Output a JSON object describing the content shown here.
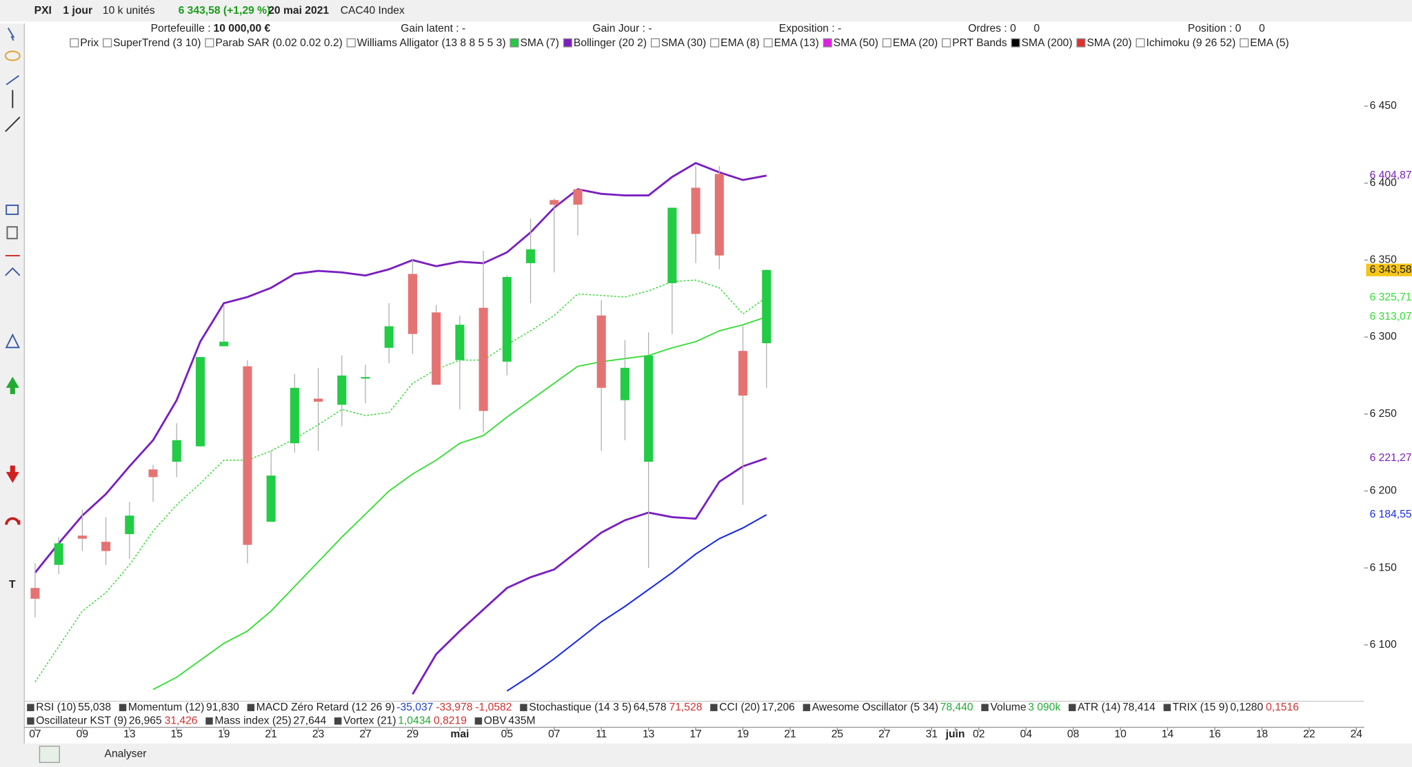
{
  "toolbar": {
    "symbol": "PXI",
    "period": "1 jour",
    "units": "10 k unités",
    "quote": "6 343,58 (+1,29 %)",
    "date": "20 mai 2021",
    "name": "CAC40 Index",
    "analyse": "Analyser"
  },
  "account": {
    "portfolio_label": "Portefeuille :",
    "portfolio_value": "10 000,00 €",
    "gain_latent": "Gain latent : -",
    "gain_jour": "Gain Jour : -",
    "exposition": "Exposition : -",
    "ordres": "Ordres : 0",
    "ordres_2": "0",
    "position": "Position : 0",
    "position_2": "0"
  },
  "indicators": [
    {
      "name": "Prix",
      "color": "#ffffff"
    },
    {
      "name": "SuperTrend (3 10)",
      "color": "#ffffff"
    },
    {
      "name": "Parab SAR (0.02 0.02 0.2)",
      "color": "#ffffff"
    },
    {
      "name": "Williams Alligator (13 8 8 5 5 3)",
      "color": "#ffffff"
    },
    {
      "name": "SMA (7)",
      "color": "#22cc44"
    },
    {
      "name": "Bollinger (20 2)",
      "color": "#7a1fbf"
    },
    {
      "name": "SMA (30)",
      "color": "#ffffff"
    },
    {
      "name": "EMA (8)",
      "color": "#ffffff"
    },
    {
      "name": "EMA (13)",
      "color": "#ffffff"
    },
    {
      "name": "SMA (50)",
      "color": "#e020e0"
    },
    {
      "name": "EMA (20)",
      "color": "#ffffff"
    },
    {
      "name": "PRT Bands",
      "color": "#ffffff"
    },
    {
      "name": "SMA (200)",
      "color": "#000000"
    },
    {
      "name": "SMA (20)",
      "color": "#e03030"
    },
    {
      "name": "Ichimoku (9 26 52)",
      "color": "#ffffff"
    },
    {
      "name": "EMA (5)",
      "color": "#ffffff"
    }
  ],
  "panels": [
    [
      {
        "name": "RSI (10)",
        "values": [
          {
            "text": "55,038",
            "color": "#222222"
          }
        ]
      },
      {
        "name": "Momentum (12)",
        "values": [
          {
            "text": "91,830",
            "color": "#222222"
          }
        ]
      },
      {
        "name": "MACD Zéro Retard (12 26 9)",
        "values": [
          {
            "text": "-35,037",
            "color": "#2040d0"
          },
          {
            "text": "-33,978",
            "color": "#d03030"
          },
          {
            "text": "-1,0582",
            "color": "#d03030"
          }
        ]
      },
      {
        "name": "Stochastique (14 3 5)",
        "values": [
          {
            "text": "64,578",
            "color": "#222222"
          },
          {
            "text": "71,528",
            "color": "#d03030"
          }
        ]
      },
      {
        "name": "CCI (20)",
        "values": [
          {
            "text": "17,206",
            "color": "#222222"
          }
        ]
      },
      {
        "name": "Awesome Oscillator (5 34)",
        "values": [
          {
            "text": "78,440",
            "color": "#22aa33"
          }
        ]
      },
      {
        "name": "Volume",
        "values": [
          {
            "text": "3 090k",
            "color": "#22aa33"
          }
        ]
      },
      {
        "name": "ATR (14)",
        "values": [
          {
            "text": "78,414",
            "color": "#222222"
          }
        ]
      },
      {
        "name": "TRIX (15 9)",
        "values": [
          {
            "text": "0,1280",
            "color": "#222222"
          },
          {
            "text": "0,1516",
            "color": "#d03030"
          }
        ]
      }
    ],
    [
      {
        "name": "Oscillateur KST (9)",
        "values": [
          {
            "text": "26,965",
            "color": "#222222"
          },
          {
            "text": "31,426",
            "color": "#d03030"
          }
        ]
      },
      {
        "name": "Mass index (25)",
        "values": [
          {
            "text": "27,644",
            "color": "#222222"
          }
        ]
      },
      {
        "name": "Vortex (21)",
        "values": [
          {
            "text": "1,0434",
            "color": "#22aa33"
          },
          {
            "text": "0,8219",
            "color": "#d03030"
          }
        ]
      },
      {
        "name": "OBV",
        "values": [
          {
            "text": "435M",
            "color": "#222222"
          }
        ]
      }
    ]
  ],
  "chart_data": {
    "type": "candlestick",
    "categories": [
      "07",
      null,
      "09",
      null,
      "13",
      null,
      "15",
      null,
      "19",
      null,
      "21",
      null,
      "23",
      null,
      "27",
      null,
      "29",
      null,
      "mai",
      null,
      "05",
      null,
      "07",
      null,
      "11",
      null,
      "13",
      null,
      "17",
      null,
      "19",
      null,
      "21",
      null,
      "25",
      null,
      "27",
      null,
      "31",
      "juin",
      "02",
      null,
      "04",
      null,
      "08",
      null,
      "10",
      null,
      "14",
      null,
      "16",
      null,
      "18",
      null,
      "22",
      null,
      "24"
    ],
    "ylim": [
      6064,
      6485
    ],
    "yticks": [
      {
        "value": 6450,
        "label": "6 450"
      },
      {
        "value": 6400,
        "label": "6 400"
      },
      {
        "value": 6350,
        "label": "6 350"
      },
      {
        "value": 6300,
        "label": "6 300"
      },
      {
        "value": 6250,
        "label": "6 250"
      },
      {
        "value": 6200,
        "label": "6 200"
      },
      {
        "value": 6150,
        "label": "6 150"
      },
      {
        "value": 6100,
        "label": "6 100"
      }
    ],
    "series": [
      {
        "name": "Prix",
        "up_color": "#22cc44",
        "down_color": "#e57373",
        "last_label": "6 343,58",
        "label_bg": "#f5c518",
        "open": [
          6137,
          6152,
          6171,
          6167,
          6172,
          6214,
          6219,
          6229,
          6294,
          6281,
          6180,
          6231,
          6260,
          6256,
          6273,
          6293,
          6341,
          6316,
          6285,
          6319,
          6284,
          6348,
          6389,
          6396,
          6314,
          6259,
          6219,
          6335,
          6397,
          6406,
          6291,
          6296,
          null,
          null,
          null,
          null,
          null,
          null,
          null,
          null,
          null,
          null,
          null,
          null,
          null,
          null,
          null,
          null,
          null,
          null,
          null,
          null,
          null,
          null,
          null,
          null,
          null
        ],
        "high": [
          6153,
          6170,
          6188,
          6183,
          6193,
          6217,
          6244,
          6287,
          6321,
          6285,
          6226,
          6276,
          6280,
          6288,
          6282,
          6322,
          6351,
          6321,
          6314,
          6356,
          6340,
          6377,
          6390,
          6396,
          6324,
          6298,
          6303,
          6384,
          6411,
          6411,
          6308,
          6344,
          null,
          null,
          null,
          null,
          null,
          null,
          null,
          null,
          null,
          null,
          null,
          null,
          null,
          null,
          null,
          null,
          null,
          null,
          null,
          null,
          null,
          null,
          null,
          null,
          null
        ],
        "low": [
          6118,
          6146,
          6161,
          6152,
          6156,
          6193,
          6209,
          6229,
          6294,
          6153,
          6180,
          6225,
          6226,
          6242,
          6257,
          6283,
          6289,
          6269,
          6253,
          6238,
          6275,
          6322,
          6342,
          6366,
          6226,
          6233,
          6150,
          6302,
          6348,
          6344,
          6191,
          6267,
          null,
          null,
          null,
          null,
          null,
          null,
          null,
          null,
          null,
          null,
          null,
          null,
          null,
          null,
          null,
          null,
          null,
          null,
          null,
          null,
          null,
          null,
          null,
          null,
          null
        ],
        "close": [
          6130,
          6166,
          6169,
          6161,
          6184,
          6209,
          6233,
          6287,
          6297,
          6165,
          6210,
          6267,
          6258,
          6275,
          6274,
          6307,
          6302,
          6269,
          6308,
          6252,
          6339,
          6357,
          6386,
          6386,
          6267,
          6280,
          6288,
          6384,
          6367,
          6353,
          6262,
          6343.58,
          null,
          null,
          null,
          null,
          null,
          null,
          null,
          null,
          null,
          null,
          null,
          null,
          null,
          null,
          null,
          null,
          null,
          null,
          null,
          null,
          null,
          null,
          null,
          null,
          null
        ]
      }
    ],
    "overlays": [
      {
        "color": "#7a1fbf",
        "width": 2.2,
        "dash": "none",
        "last_label": "6 404,87",
        "values": [
          6147,
          6166,
          6184,
          6198,
          6216,
          6233,
          6259,
          6297,
          6322,
          6326,
          6332,
          6341,
          6343,
          6342,
          6340,
          6344,
          6350,
          6346,
          6349,
          6348,
          6355,
          6368,
          6384,
          6396,
          6393,
          6392,
          6392,
          6404,
          6413,
          6407,
          6402,
          6404.87,
          null,
          null,
          null,
          null,
          null,
          null,
          null,
          null,
          null,
          null,
          null,
          null,
          null,
          null,
          null,
          null,
          null,
          null,
          null,
          null,
          null,
          null,
          null,
          null,
          null
        ]
      },
      {
        "color": "#7a1fbf",
        "width": 2.2,
        "dash": "none",
        "last_label": "6 221,27",
        "values": [
          null,
          null,
          null,
          null,
          null,
          null,
          null,
          null,
          null,
          null,
          null,
          null,
          null,
          null,
          null,
          null,
          6068,
          6094,
          6109,
          6123,
          6137,
          6144,
          6149,
          6161,
          6173,
          6181,
          6186,
          6183,
          6182,
          6206,
          6216,
          6221.27,
          null,
          null,
          null,
          null,
          null,
          null,
          null,
          null,
          null,
          null,
          null,
          null,
          null,
          null,
          null,
          null,
          null,
          null,
          null,
          null,
          null,
          null,
          null,
          null,
          null
        ]
      },
      {
        "color": "#33dd33",
        "width": 1.2,
        "dash": "2 2",
        "last_label": "6 325,71",
        "values": [
          6076,
          6099,
          6122,
          6134,
          6152,
          6174,
          6191,
          6205,
          6220,
          6220,
          6226,
          6234,
          6243,
          6253,
          6249,
          6251,
          6270,
          6279,
          6285,
          6285,
          6295,
          6304,
          6314,
          6328,
          6327,
          6326,
          6330,
          6336,
          6337,
          6332,
          6315,
          6325.71,
          null,
          null,
          null,
          null,
          null,
          null,
          null,
          null,
          null,
          null,
          null,
          null,
          null,
          null,
          null,
          null,
          null,
          null,
          null,
          null,
          null,
          null,
          null,
          null,
          null
        ]
      },
      {
        "color": "#33dd33",
        "width": 1.4,
        "dash": "none",
        "last_label": "6 313,07",
        "values": [
          null,
          null,
          null,
          null,
          null,
          6071,
          6079,
          6090,
          6101,
          6109,
          6122,
          6138,
          6154,
          6170,
          6185,
          6200,
          6211,
          6220,
          6231,
          6236,
          6248,
          6259,
          6270,
          6281,
          6284,
          6286,
          6288,
          6293,
          6297,
          6304,
          6308,
          6313.07,
          null,
          null,
          null,
          null,
          null,
          null,
          null,
          null,
          null,
          null,
          null,
          null,
          null,
          null,
          null,
          null,
          null,
          null,
          null,
          null,
          null,
          null,
          null,
          null,
          null
        ]
      },
      {
        "color": "#1a2ee0",
        "width": 1.6,
        "dash": "none",
        "last_label": "6 184,55",
        "values": [
          null,
          null,
          null,
          null,
          null,
          null,
          null,
          null,
          null,
          null,
          null,
          null,
          null,
          null,
          null,
          null,
          null,
          null,
          null,
          null,
          6070,
          6080,
          6091,
          6103,
          6115,
          6125,
          6136,
          6147,
          6159,
          6169,
          6176,
          6184.55,
          null,
          null,
          null,
          null,
          null,
          null,
          null,
          null,
          null,
          null,
          null,
          null,
          null,
          null,
          null,
          null,
          null,
          null,
          null,
          null,
          null,
          null,
          null,
          null,
          null
        ]
      }
    ]
  }
}
